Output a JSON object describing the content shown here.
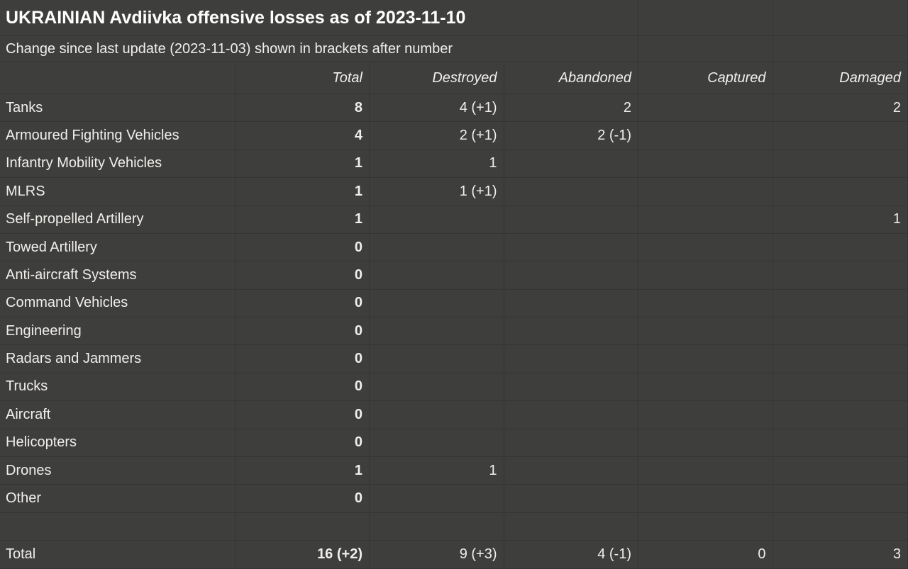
{
  "title": "UKRAINIAN Avdiivka offensive losses as of 2023-11-10",
  "subtitle": "Change since last update (2023-11-03) shown in brackets after number",
  "columns": [
    "Total",
    "Destroyed",
    "Abandoned",
    "Captured",
    "Damaged"
  ],
  "rows": [
    {
      "label": "Tanks",
      "values": [
        "8",
        "4 (+1)",
        "2",
        "",
        "2"
      ]
    },
    {
      "label": "Armoured Fighting Vehicles",
      "values": [
        "4",
        "2 (+1)",
        "2 (-1)",
        "",
        ""
      ]
    },
    {
      "label": "Infantry Mobility Vehicles",
      "values": [
        "1",
        "1",
        "",
        "",
        ""
      ]
    },
    {
      "label": "MLRS",
      "values": [
        "1",
        "1 (+1)",
        "",
        "",
        ""
      ]
    },
    {
      "label": "Self-propelled Artillery",
      "values": [
        "1",
        "",
        "",
        "",
        "1"
      ]
    },
    {
      "label": "Towed Artillery",
      "values": [
        "0",
        "",
        "",
        "",
        ""
      ]
    },
    {
      "label": "Anti-aircraft Systems",
      "values": [
        "0",
        "",
        "",
        "",
        ""
      ]
    },
    {
      "label": "Command Vehicles",
      "values": [
        "0",
        "",
        "",
        "",
        ""
      ]
    },
    {
      "label": "Engineering",
      "values": [
        "0",
        "",
        "",
        "",
        ""
      ]
    },
    {
      "label": "Radars and Jammers",
      "values": [
        "0",
        "",
        "",
        "",
        ""
      ]
    },
    {
      "label": "Trucks",
      "values": [
        "0",
        "",
        "",
        "",
        ""
      ]
    },
    {
      "label": "Aircraft",
      "values": [
        "0",
        "",
        "",
        "",
        ""
      ]
    },
    {
      "label": "Helicopters",
      "values": [
        "0",
        "",
        "",
        "",
        ""
      ]
    },
    {
      "label": "Drones",
      "values": [
        "1",
        "1",
        "",
        "",
        ""
      ]
    },
    {
      "label": "Other",
      "values": [
        "0",
        "",
        "",
        "",
        ""
      ]
    }
  ],
  "total_row": {
    "label": "Total",
    "values": [
      "16 (+2)",
      "9 (+3)",
      "4 (-1)",
      "0",
      "3"
    ]
  },
  "colors": {
    "background": "#3e3e3d",
    "gridline": "#353534",
    "text": "#f1efec",
    "title_text": "#ffffff"
  }
}
